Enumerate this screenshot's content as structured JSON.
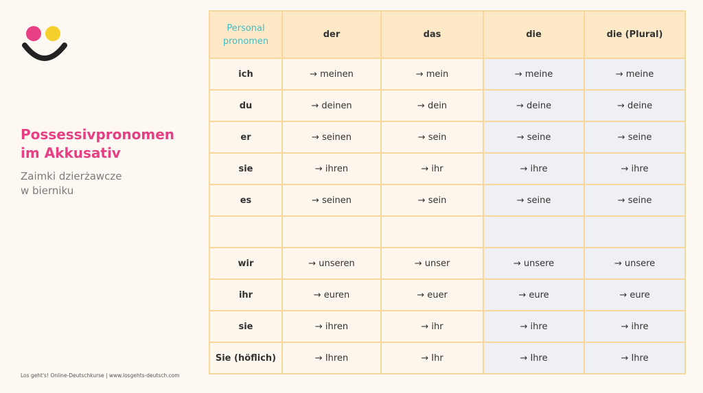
{
  "brand": {
    "colors": {
      "pink": "#e63f84",
      "yellow": "#f5cf2b",
      "dark": "#222222",
      "teal": "#2fb6bc"
    }
  },
  "title": {
    "line1": "Possessivpronomen",
    "line2": "im Akkusativ"
  },
  "subtitle": {
    "line1": "Zaimki dzierżawcze",
    "line2": "w bierniku"
  },
  "footer": "Los geht's! Online-Deutschkurse  |  www.losgehts-deutsch.com",
  "table": {
    "headers": [
      "Personal\npronomen",
      "der",
      "das",
      "die",
      "die (Plural)"
    ],
    "rows": [
      [
        "ich",
        "→ meinen",
        "→ mein",
        "→ meine",
        "→ meine"
      ],
      [
        "du",
        "→ deinen",
        "→ dein",
        "→ deine",
        "→ deine"
      ],
      [
        "er",
        "→ seinen",
        "→ sein",
        "→ seine",
        "→ seine"
      ],
      [
        "sie",
        "→ ihren",
        "→ ihr",
        "→ ihre",
        "→ ihre"
      ],
      [
        "es",
        "→ seinen",
        "→ sein",
        "→ seine",
        "→ seine"
      ],
      [
        "",
        "",
        "",
        "",
        ""
      ],
      [
        "wir",
        "→ unseren",
        "→ unser",
        "→ unsere",
        "→ unsere"
      ],
      [
        "ihr",
        "→ euren",
        "→ euer",
        "→ eure",
        "→ eure"
      ],
      [
        "sie",
        "→ ihren",
        "→ ihr",
        "→ ihre",
        "→ ihre"
      ],
      [
        "Sie (höflich)",
        "→ Ihren",
        "→ Ihr",
        "→ Ihre",
        "→ Ihre"
      ]
    ]
  }
}
